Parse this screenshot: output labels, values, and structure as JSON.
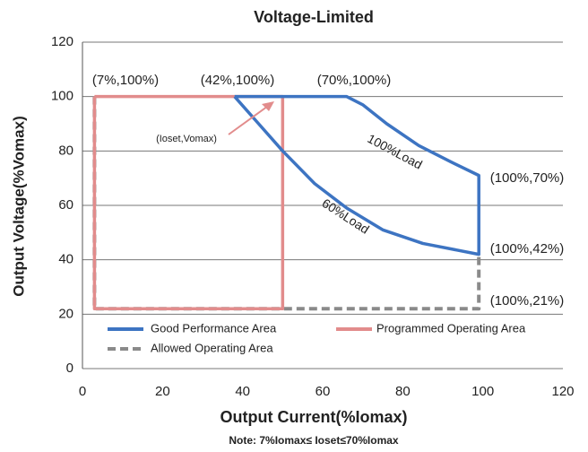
{
  "chart_data": {
    "type": "line",
    "title": "Voltage-Limited",
    "x_label": "Output Current(%Iomax)",
    "y_label": "Output Voltage(%Vomax)",
    "note": "Note: 7%Iomax≤ Ioset≤70%Iomax",
    "xlim": [
      0,
      120
    ],
    "xticks": [
      0,
      20,
      40,
      60,
      80,
      100,
      120
    ],
    "ylim": [
      0,
      120
    ],
    "yticks": [
      0,
      20,
      40,
      60,
      80,
      100,
      120
    ],
    "grid": true,
    "legend": "bottom",
    "series": [
      {
        "name": "Good Performance Area",
        "color": "#3d74c2",
        "dashed": false,
        "x": [
          38,
          66,
          70,
          76,
          84,
          92,
          99,
          99,
          85,
          75,
          66,
          58,
          50,
          44,
          38
        ],
        "values": [
          100,
          100,
          97,
          90,
          82,
          76,
          71,
          42,
          46,
          51,
          59,
          68,
          80,
          90,
          100
        ]
      },
      {
        "name": "Programmed Operating Area",
        "color": "#e28c8c",
        "dashed": false,
        "x": [
          3,
          50,
          50,
          3,
          3
        ],
        "values": [
          100,
          100,
          22,
          22,
          100
        ]
      },
      {
        "name": "Allowed Operating Area",
        "color": "#8a8a8a",
        "dashed": true,
        "x": [
          3,
          3,
          99,
          99
        ],
        "values": [
          100,
          22,
          22,
          42
        ]
      }
    ],
    "annotations": [
      "(7%,100%)",
      "(42%,100%)",
      "(70%,100%)",
      "(100%,70%)",
      "(100%,42%)",
      "(100%,21%)",
      "(Ioset,Vomax)",
      "100%Load",
      "60%Load"
    ]
  }
}
